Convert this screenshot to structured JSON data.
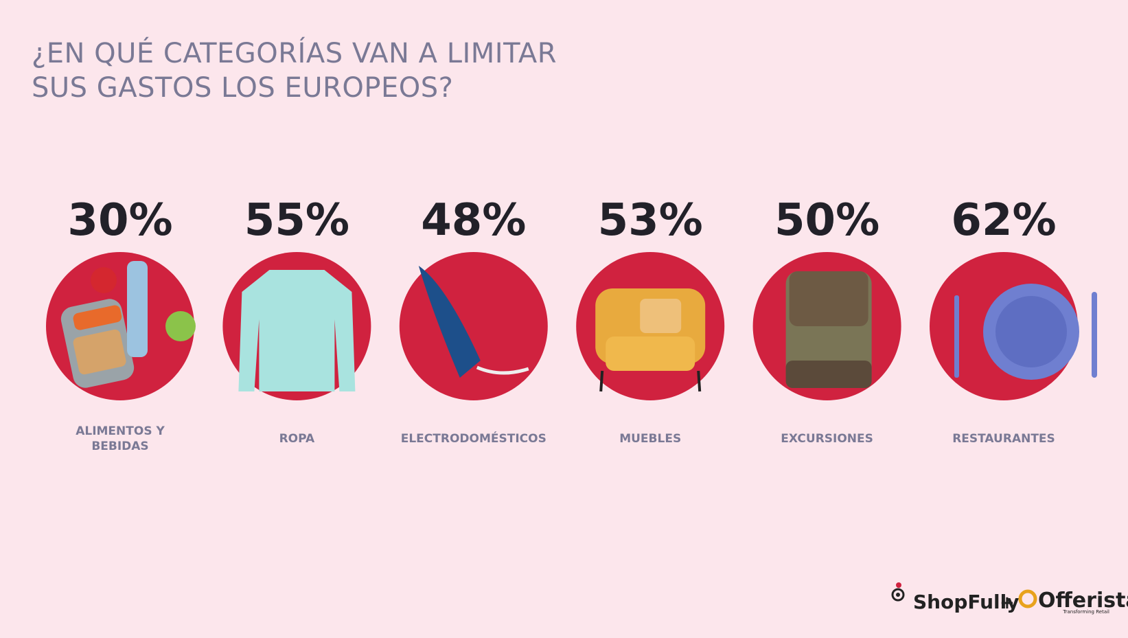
{
  "header": {
    "title": [
      "¿EN QUÉ CATEGORÍAS VAN A LIMITAR",
      "SUS GASTOS LOS EUROPEOS?"
    ]
  },
  "items": [
    {
      "value": "30%",
      "label": [
        "ALIMENTOS Y",
        "BEBIDAS"
      ]
    },
    {
      "value": "55%",
      "label": [
        "ROPA"
      ]
    },
    {
      "value": "48%",
      "label": [
        "ELECTRODOMÉSTICOS"
      ]
    },
    {
      "value": "53%",
      "label": [
        "MUEBLES"
      ]
    },
    {
      "value": "50%",
      "label": [
        "EXCURSIONES"
      ]
    },
    {
      "value": "62%",
      "label": [
        "RESTAURANTES"
      ]
    }
  ],
  "footer": {
    "brand1": "ShopFully",
    "plus": "+",
    "brand2": "Offerista",
    "tagline": "Transforming Retail"
  }
}
